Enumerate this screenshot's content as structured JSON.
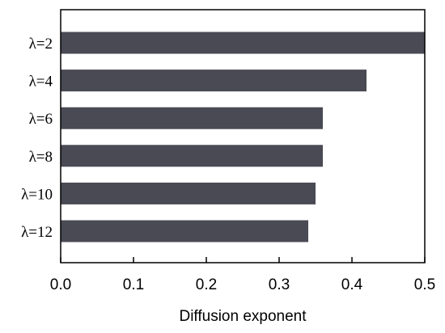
{
  "chart_data": {
    "type": "bar",
    "orientation": "horizontal",
    "categories": [
      "λ=2",
      "λ=4",
      "λ=6",
      "λ=8",
      "λ=10",
      "λ=12"
    ],
    "values": [
      0.5,
      0.42,
      0.36,
      0.36,
      0.35,
      0.34
    ],
    "title": "",
    "xlabel": "Diffusion exponent",
    "ylabel": "",
    "xlim": [
      0,
      0.5
    ],
    "xticks": [
      "0.0",
      "0.1",
      "0.2",
      "0.3",
      "0.4",
      "0.5"
    ],
    "grid": false,
    "legend": "none",
    "bar_color": "#4a4a55"
  }
}
